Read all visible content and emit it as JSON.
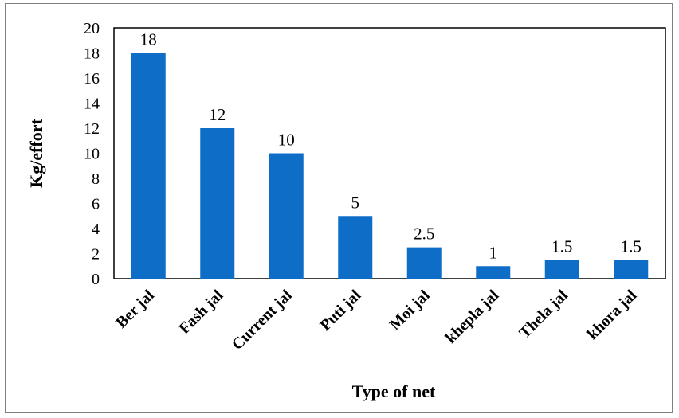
{
  "chart_data": {
    "type": "bar",
    "xlabel": "Type of net",
    "ylabel": "Kg/effort",
    "ylim": [
      0,
      20
    ],
    "yticks": [
      0,
      2,
      4,
      6,
      8,
      10,
      12,
      14,
      16,
      18,
      20
    ],
    "categories": [
      "Ber jal",
      "Fash jal",
      "Current jal",
      "Puti jal",
      "Moi jal",
      "khepla jal",
      "Thela jal",
      "khora jal"
    ],
    "values": [
      18,
      12,
      10,
      5,
      2.5,
      1,
      1.5,
      1.5
    ],
    "data_labels": [
      "18",
      "12",
      "10",
      "5",
      "2.5",
      "1",
      "1.5",
      "1.5"
    ],
    "bar_color": "#0e6ec7",
    "grid": false,
    "legend": "none"
  }
}
